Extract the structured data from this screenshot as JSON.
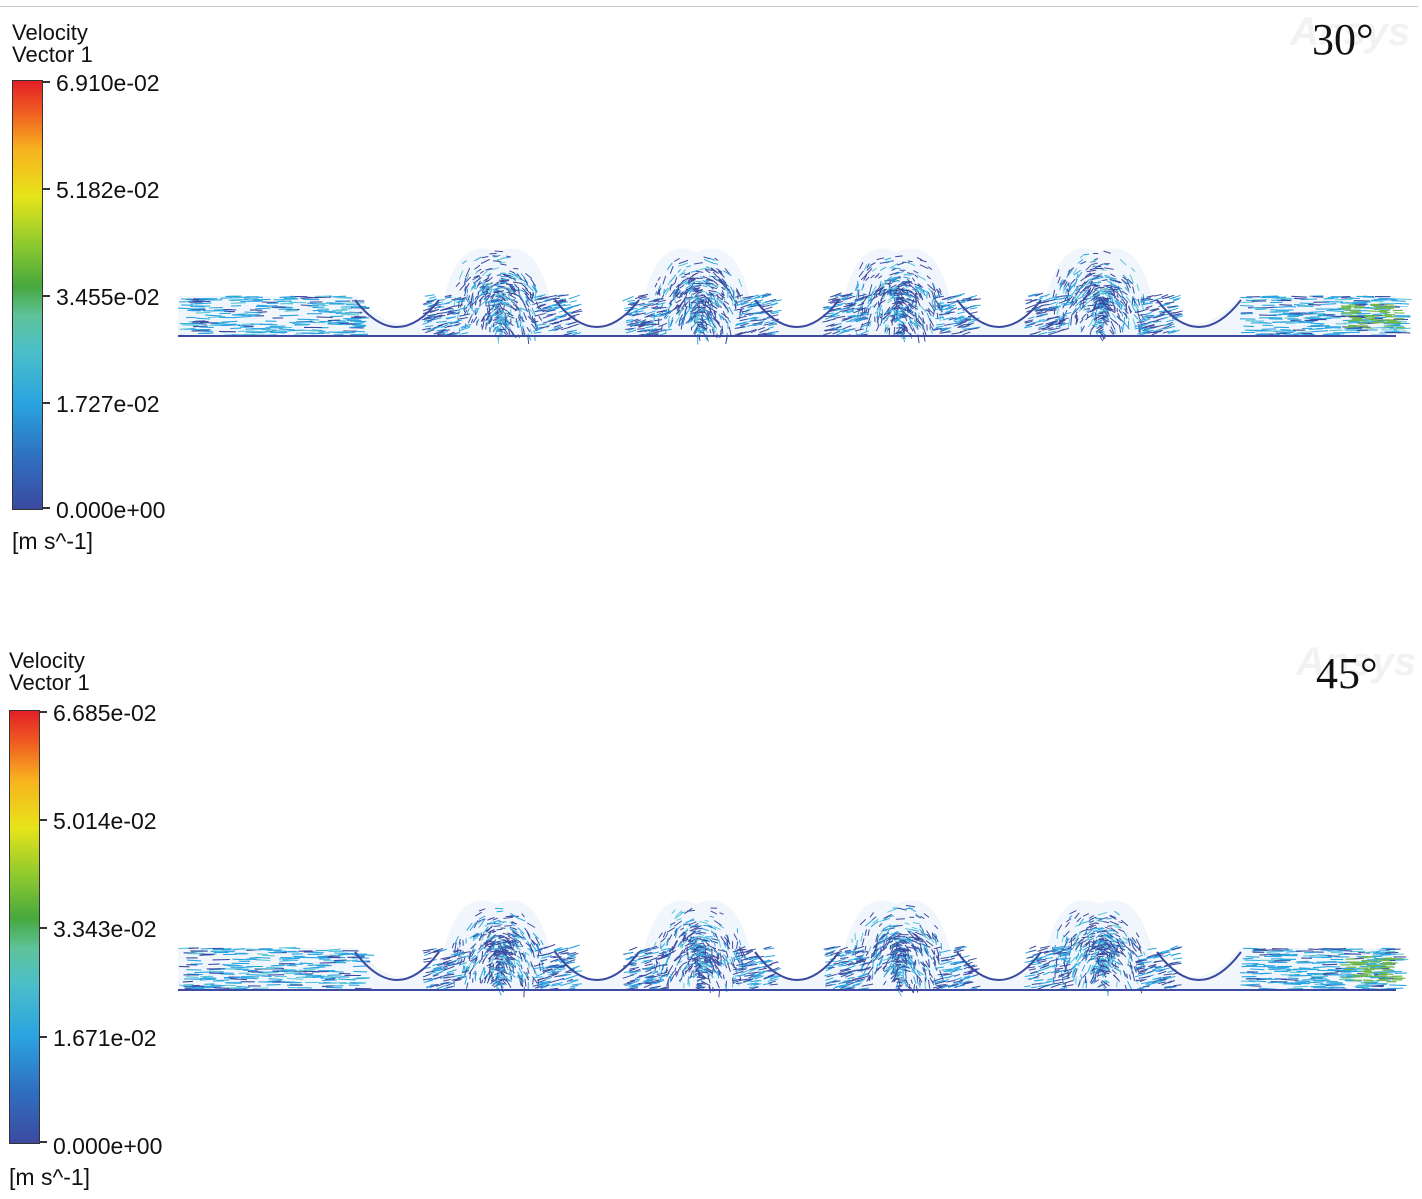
{
  "panels": [
    {
      "angle": "30°",
      "legend": {
        "title_line1": "Velocity",
        "title_line2": "Vector 1",
        "ticks": [
          "6.910e-02",
          "5.182e-02",
          "3.455e-02",
          "1.727e-02",
          "0.000e+00"
        ],
        "unit": "[m s^-1]"
      },
      "watermark": "Ansys"
    },
    {
      "angle": "45°",
      "legend": {
        "title_line1": "Velocity",
        "title_line2": "Vector 1",
        "ticks": [
          "6.685e-02",
          "5.014e-02",
          "3.343e-02",
          "1.671e-02",
          "0.000e+00"
        ],
        "unit": "[m s^-1]"
      },
      "watermark": "Ansys"
    }
  ],
  "colors": {
    "low": "#3b4aa0",
    "mid_low": "#2aa5e0",
    "mid": "#47a83e",
    "mid_high": "#e7e41a",
    "high": "#e21f26"
  }
}
